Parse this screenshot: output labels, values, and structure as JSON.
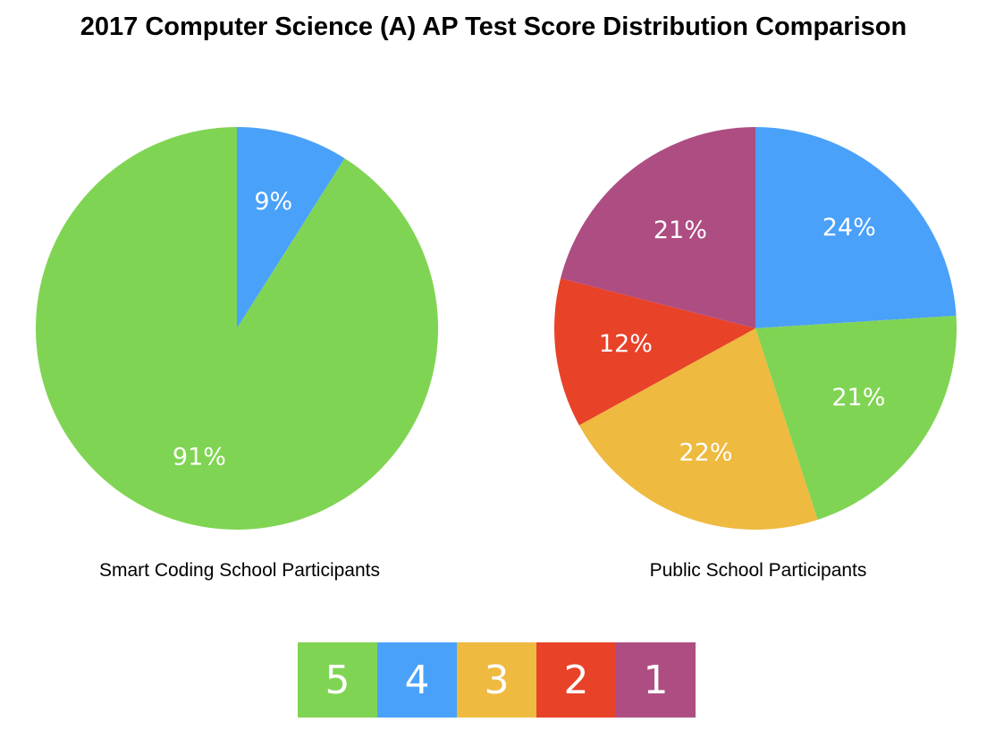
{
  "colors": {
    "5": "#80d453",
    "4": "#4aa1f9",
    "3": "#eeba40",
    "2": "#e84229",
    "1": "#ae4d82"
  },
  "chart_data": {
    "title": "2017 Computer Science (A) AP Test Score Distribution Comparison",
    "legend": {
      "placement": "bottom-center",
      "entries": [
        "5",
        "4",
        "3",
        "2",
        "1"
      ]
    },
    "charts": [
      {
        "type": "pie",
        "caption": "Smart Coding School Participants",
        "slices": [
          {
            "score": "4",
            "value": 9,
            "label": "9%"
          },
          {
            "score": "5",
            "value": 91,
            "label": "91%"
          }
        ]
      },
      {
        "type": "pie",
        "caption": "Public School Participants",
        "slices": [
          {
            "score": "4",
            "value": 24,
            "label": "24%"
          },
          {
            "score": "5",
            "value": 21,
            "label": "21%"
          },
          {
            "score": "3",
            "value": 22,
            "label": "22%"
          },
          {
            "score": "2",
            "value": 12,
            "label": "12%"
          },
          {
            "score": "1",
            "value": 21,
            "label": "21%"
          }
        ]
      }
    ]
  }
}
